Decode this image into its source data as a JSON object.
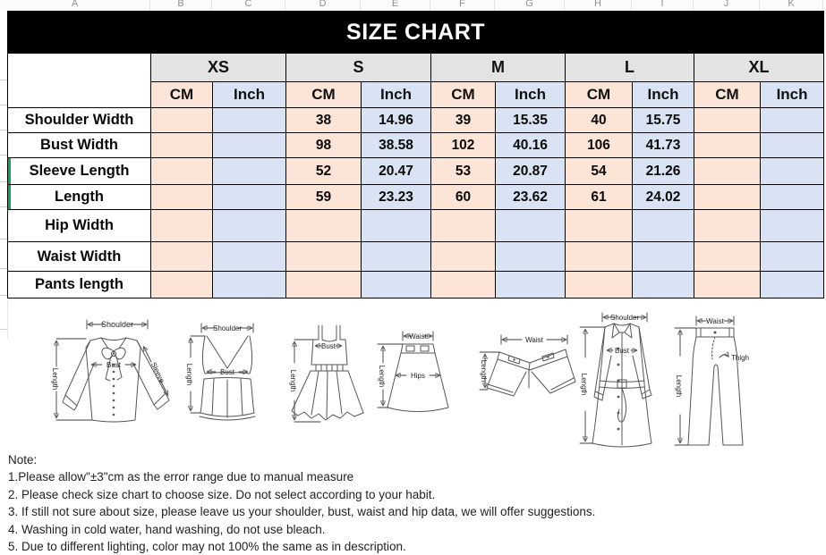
{
  "spreadsheet": {
    "column_letters": [
      "A",
      "B",
      "C",
      "D",
      "E",
      "F",
      "G",
      "H",
      "I",
      "J",
      "K"
    ]
  },
  "title": "SIZE CHART",
  "table": {
    "size_headers": [
      "XS",
      "S",
      "M",
      "L",
      "XL"
    ],
    "unit_headers": {
      "cm": "CM",
      "inch": "Inch"
    },
    "rows": [
      {
        "label": "Shoulder Width",
        "values": [
          "",
          "",
          "38",
          "14.96",
          "39",
          "15.35",
          "40",
          "15.75",
          "",
          ""
        ],
        "left_accent": false
      },
      {
        "label": "Bust Width",
        "values": [
          "",
          "",
          "98",
          "38.58",
          "102",
          "40.16",
          "106",
          "41.73",
          "",
          ""
        ],
        "left_accent": false
      },
      {
        "label": "Sleeve Length",
        "values": [
          "",
          "",
          "52",
          "20.47",
          "53",
          "20.87",
          "54",
          "21.26",
          "",
          ""
        ],
        "left_accent": true
      },
      {
        "label": "Length",
        "values": [
          "",
          "",
          "59",
          "23.23",
          "60",
          "23.62",
          "61",
          "24.02",
          "",
          ""
        ],
        "left_accent": true
      },
      {
        "label": "Hip Width",
        "values": [
          "",
          "",
          "",
          "",
          "",
          "",
          "",
          "",
          "",
          ""
        ],
        "left_accent": false
      },
      {
        "label": "Waist Width",
        "values": [
          "",
          "",
          "",
          "",
          "",
          "",
          "",
          "",
          "",
          ""
        ],
        "left_accent": false
      },
      {
        "label": "Pants length",
        "values": [
          "",
          "",
          "",
          "",
          "",
          "",
          "",
          "",
          "",
          ""
        ],
        "left_accent": false
      }
    ]
  },
  "diagrams": {
    "blouse": {
      "labels": {
        "shoulder": "Shoulder",
        "length": "Length",
        "bust": "Bust",
        "sleeve": "Sleeve"
      }
    },
    "corset_top": {
      "labels": {
        "shoulder": "Shoulder",
        "length": "Length",
        "bust": "Bust"
      }
    },
    "cami_dress": {
      "labels": {
        "bust": "Bust",
        "length": "Length"
      }
    },
    "skirt": {
      "labels": {
        "waist": "Waist",
        "length": "Length",
        "hips": "Hips"
      }
    },
    "shorts": {
      "labels": {
        "waist": "Waist",
        "length": "Length"
      }
    },
    "coat": {
      "labels": {
        "shoulder": "Shoulder",
        "bust": "Bust",
        "length": "Length"
      }
    },
    "pants": {
      "labels": {
        "waist": "Waist",
        "length": "Length",
        "thigh": "Thigh"
      }
    }
  },
  "notes": {
    "heading": "Note:",
    "lines": [
      "1.Please allow\"±3\"cm as the error range due to manual measure",
      "2. Please check size chart to choose size. Do not select according to your habit.",
      "3. If still not sure about size, please leave us your shoulder, bust, waist and hip data, we will offer suggestions.",
      "4. Washing in cold water, hand washing, do not use bleach.",
      "5. Due to different lighting, color may not 100% the same as in description."
    ]
  },
  "colors": {
    "banner_bg": "#000000",
    "banner_text": "#ffffff",
    "size_header_bg": "#e3e3e3",
    "cm_fill": "#fce4d6",
    "inch_fill": "#dae3f3",
    "accent_green": "#14a05f"
  }
}
